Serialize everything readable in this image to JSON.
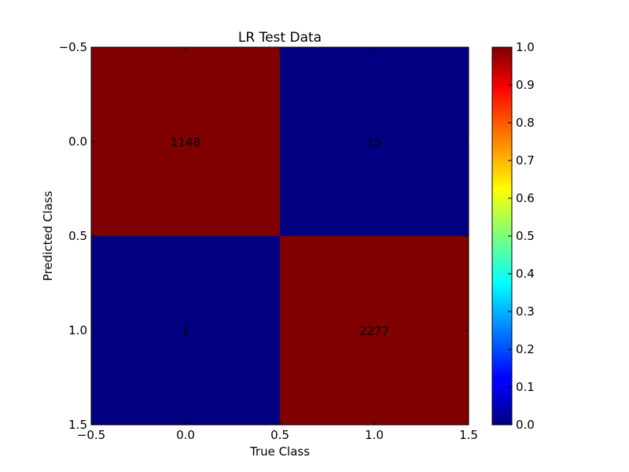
{
  "chart_data": {
    "type": "heatmap",
    "title": "LR Test Data",
    "xlabel": "True Class",
    "ylabel": "Predicted Class",
    "x_ticks": [
      "−0.5",
      "0.0",
      "0.5",
      "1.0",
      "1.5"
    ],
    "y_ticks": [
      "−0.5",
      "0.0",
      "0.5",
      "1.0",
      "1.5"
    ],
    "xlim": [
      -0.5,
      1.5
    ],
    "ylim": [
      1.5,
      -0.5
    ],
    "matrix": [
      [
        1148,
        15
      ],
      [
        1,
        2277
      ]
    ],
    "normalized": [
      [
        1.0,
        0.0
      ],
      [
        0.0,
        1.0
      ]
    ],
    "colorbar": {
      "colormap": "jet",
      "range": [
        0.0,
        1.0
      ],
      "ticks": [
        "0.0",
        "0.1",
        "0.2",
        "0.3",
        "0.4",
        "0.5",
        "0.6",
        "0.7",
        "0.8",
        "0.9",
        "1.0"
      ]
    }
  }
}
